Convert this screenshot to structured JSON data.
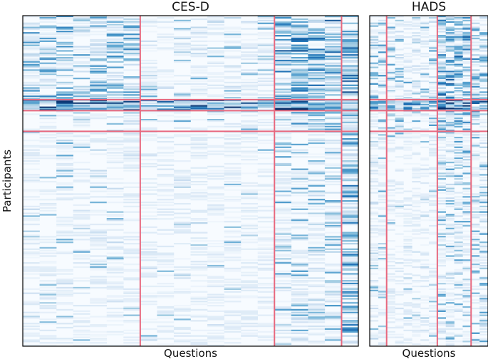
{
  "chart_data": [
    {
      "type": "heatmap",
      "title": "CES-D",
      "xlabel": "Questions",
      "ylabel": "Participants",
      "n_questions": 20,
      "question_cluster_boundaries": [
        7,
        15,
        19
      ],
      "participant_cluster_boundaries_fraction": [
        0.256,
        0.288,
        0.35
      ],
      "colormap": "Blues",
      "value_range": [
        0,
        3
      ]
    },
    {
      "type": "heatmap",
      "title": "HADS",
      "xlabel": "Questions",
      "ylabel": "",
      "n_questions": 14,
      "question_cluster_boundaries": [
        2,
        8,
        12
      ],
      "participant_cluster_boundaries_fraction": [
        0.256,
        0.288,
        0.35
      ],
      "colormap": "Blues",
      "value_range": [
        0,
        3
      ]
    }
  ],
  "cluster_line_color": "#e8687e"
}
